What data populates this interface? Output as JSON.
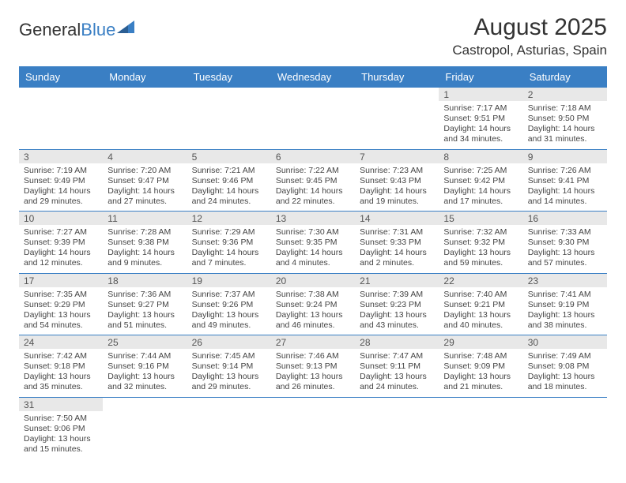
{
  "brand": {
    "part1": "General",
    "part2": "Blue"
  },
  "title": "August 2025",
  "location": "Castropol, Asturias, Spain",
  "colors": {
    "accent": "#3a7fc4",
    "dayrow_bg": "#e8e8e8",
    "text": "#333333"
  },
  "day_headers": [
    "Sunday",
    "Monday",
    "Tuesday",
    "Wednesday",
    "Thursday",
    "Friday",
    "Saturday"
  ],
  "layout": {
    "columns": 7,
    "rows": 6,
    "cell_fontsize_pt": 8,
    "header_fontsize_pt": 10
  },
  "weeks": [
    [
      null,
      null,
      null,
      null,
      null,
      {
        "n": "1",
        "sr": "Sunrise: 7:17 AM",
        "ss": "Sunset: 9:51 PM",
        "d1": "Daylight: 14 hours",
        "d2": "and 34 minutes."
      },
      {
        "n": "2",
        "sr": "Sunrise: 7:18 AM",
        "ss": "Sunset: 9:50 PM",
        "d1": "Daylight: 14 hours",
        "d2": "and 31 minutes."
      }
    ],
    [
      {
        "n": "3",
        "sr": "Sunrise: 7:19 AM",
        "ss": "Sunset: 9:49 PM",
        "d1": "Daylight: 14 hours",
        "d2": "and 29 minutes."
      },
      {
        "n": "4",
        "sr": "Sunrise: 7:20 AM",
        "ss": "Sunset: 9:47 PM",
        "d1": "Daylight: 14 hours",
        "d2": "and 27 minutes."
      },
      {
        "n": "5",
        "sr": "Sunrise: 7:21 AM",
        "ss": "Sunset: 9:46 PM",
        "d1": "Daylight: 14 hours",
        "d2": "and 24 minutes."
      },
      {
        "n": "6",
        "sr": "Sunrise: 7:22 AM",
        "ss": "Sunset: 9:45 PM",
        "d1": "Daylight: 14 hours",
        "d2": "and 22 minutes."
      },
      {
        "n": "7",
        "sr": "Sunrise: 7:23 AM",
        "ss": "Sunset: 9:43 PM",
        "d1": "Daylight: 14 hours",
        "d2": "and 19 minutes."
      },
      {
        "n": "8",
        "sr": "Sunrise: 7:25 AM",
        "ss": "Sunset: 9:42 PM",
        "d1": "Daylight: 14 hours",
        "d2": "and 17 minutes."
      },
      {
        "n": "9",
        "sr": "Sunrise: 7:26 AM",
        "ss": "Sunset: 9:41 PM",
        "d1": "Daylight: 14 hours",
        "d2": "and 14 minutes."
      }
    ],
    [
      {
        "n": "10",
        "sr": "Sunrise: 7:27 AM",
        "ss": "Sunset: 9:39 PM",
        "d1": "Daylight: 14 hours",
        "d2": "and 12 minutes."
      },
      {
        "n": "11",
        "sr": "Sunrise: 7:28 AM",
        "ss": "Sunset: 9:38 PM",
        "d1": "Daylight: 14 hours",
        "d2": "and 9 minutes."
      },
      {
        "n": "12",
        "sr": "Sunrise: 7:29 AM",
        "ss": "Sunset: 9:36 PM",
        "d1": "Daylight: 14 hours",
        "d2": "and 7 minutes."
      },
      {
        "n": "13",
        "sr": "Sunrise: 7:30 AM",
        "ss": "Sunset: 9:35 PM",
        "d1": "Daylight: 14 hours",
        "d2": "and 4 minutes."
      },
      {
        "n": "14",
        "sr": "Sunrise: 7:31 AM",
        "ss": "Sunset: 9:33 PM",
        "d1": "Daylight: 14 hours",
        "d2": "and 2 minutes."
      },
      {
        "n": "15",
        "sr": "Sunrise: 7:32 AM",
        "ss": "Sunset: 9:32 PM",
        "d1": "Daylight: 13 hours",
        "d2": "and 59 minutes."
      },
      {
        "n": "16",
        "sr": "Sunrise: 7:33 AM",
        "ss": "Sunset: 9:30 PM",
        "d1": "Daylight: 13 hours",
        "d2": "and 57 minutes."
      }
    ],
    [
      {
        "n": "17",
        "sr": "Sunrise: 7:35 AM",
        "ss": "Sunset: 9:29 PM",
        "d1": "Daylight: 13 hours",
        "d2": "and 54 minutes."
      },
      {
        "n": "18",
        "sr": "Sunrise: 7:36 AM",
        "ss": "Sunset: 9:27 PM",
        "d1": "Daylight: 13 hours",
        "d2": "and 51 minutes."
      },
      {
        "n": "19",
        "sr": "Sunrise: 7:37 AM",
        "ss": "Sunset: 9:26 PM",
        "d1": "Daylight: 13 hours",
        "d2": "and 49 minutes."
      },
      {
        "n": "20",
        "sr": "Sunrise: 7:38 AM",
        "ss": "Sunset: 9:24 PM",
        "d1": "Daylight: 13 hours",
        "d2": "and 46 minutes."
      },
      {
        "n": "21",
        "sr": "Sunrise: 7:39 AM",
        "ss": "Sunset: 9:23 PM",
        "d1": "Daylight: 13 hours",
        "d2": "and 43 minutes."
      },
      {
        "n": "22",
        "sr": "Sunrise: 7:40 AM",
        "ss": "Sunset: 9:21 PM",
        "d1": "Daylight: 13 hours",
        "d2": "and 40 minutes."
      },
      {
        "n": "23",
        "sr": "Sunrise: 7:41 AM",
        "ss": "Sunset: 9:19 PM",
        "d1": "Daylight: 13 hours",
        "d2": "and 38 minutes."
      }
    ],
    [
      {
        "n": "24",
        "sr": "Sunrise: 7:42 AM",
        "ss": "Sunset: 9:18 PM",
        "d1": "Daylight: 13 hours",
        "d2": "and 35 minutes."
      },
      {
        "n": "25",
        "sr": "Sunrise: 7:44 AM",
        "ss": "Sunset: 9:16 PM",
        "d1": "Daylight: 13 hours",
        "d2": "and 32 minutes."
      },
      {
        "n": "26",
        "sr": "Sunrise: 7:45 AM",
        "ss": "Sunset: 9:14 PM",
        "d1": "Daylight: 13 hours",
        "d2": "and 29 minutes."
      },
      {
        "n": "27",
        "sr": "Sunrise: 7:46 AM",
        "ss": "Sunset: 9:13 PM",
        "d1": "Daylight: 13 hours",
        "d2": "and 26 minutes."
      },
      {
        "n": "28",
        "sr": "Sunrise: 7:47 AM",
        "ss": "Sunset: 9:11 PM",
        "d1": "Daylight: 13 hours",
        "d2": "and 24 minutes."
      },
      {
        "n": "29",
        "sr": "Sunrise: 7:48 AM",
        "ss": "Sunset: 9:09 PM",
        "d1": "Daylight: 13 hours",
        "d2": "and 21 minutes."
      },
      {
        "n": "30",
        "sr": "Sunrise: 7:49 AM",
        "ss": "Sunset: 9:08 PM",
        "d1": "Daylight: 13 hours",
        "d2": "and 18 minutes."
      }
    ],
    [
      {
        "n": "31",
        "sr": "Sunrise: 7:50 AM",
        "ss": "Sunset: 9:06 PM",
        "d1": "Daylight: 13 hours",
        "d2": "and 15 minutes."
      },
      null,
      null,
      null,
      null,
      null,
      null
    ]
  ]
}
